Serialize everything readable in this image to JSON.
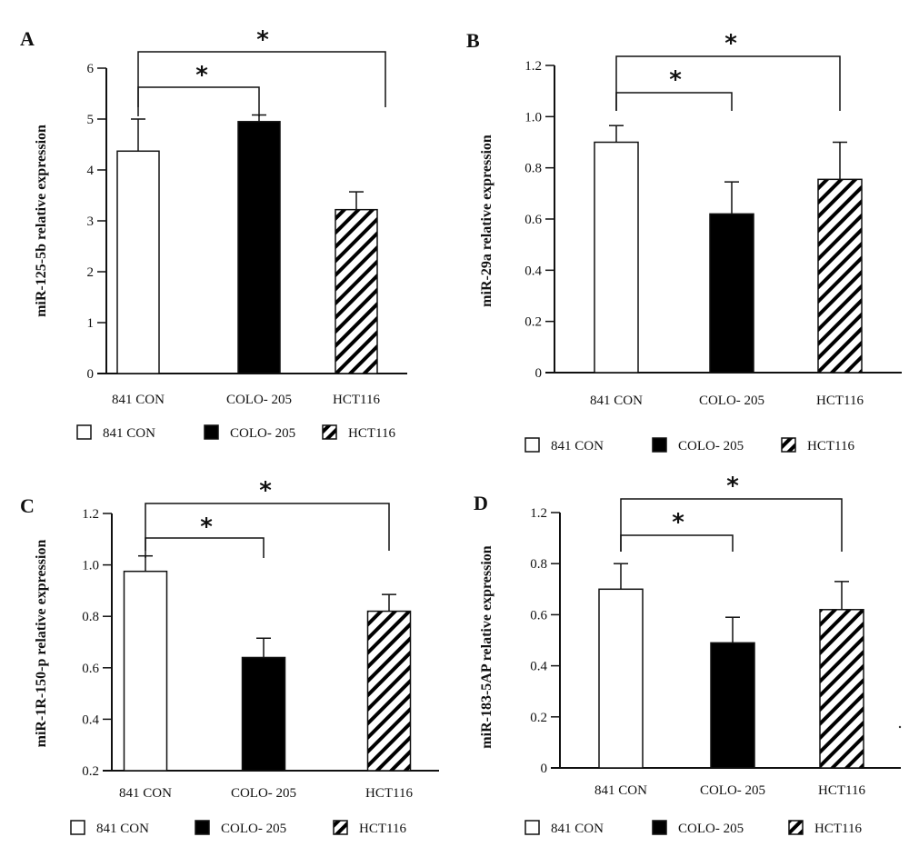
{
  "chart_data": [
    {
      "type": "bar",
      "panel": "A",
      "ylabel": "miR-125-5b relative expression",
      "categories": [
        "841 CON",
        "COLO- 205",
        "HCT116"
      ],
      "values": [
        4.37,
        4.95,
        3.22
      ],
      "error_upper": [
        5.0,
        5.08,
        3.57
      ],
      "yticks": [
        "0",
        "1",
        "2",
        "3",
        "4",
        "5",
        "6"
      ],
      "ylim": [
        0,
        6
      ],
      "significance": [
        {
          "from": "841 CON",
          "to": "COLO- 205",
          "mark": "*"
        },
        {
          "from": "841 CON",
          "to": "HCT116",
          "mark": "*"
        }
      ],
      "legend": [
        "841 CON",
        "COLO- 205",
        "HCT116"
      ]
    },
    {
      "type": "bar",
      "panel": "B",
      "ylabel": "miR-29a relative expression",
      "categories": [
        "841 CON",
        "COLO- 205",
        "HCT116"
      ],
      "values": [
        0.9,
        0.62,
        0.755
      ],
      "error_upper": [
        0.965,
        0.745,
        0.9
      ],
      "yticks": [
        "0",
        "0.2",
        "0.4",
        "0.6",
        "0.8",
        "1.0",
        "1.2"
      ],
      "ylim": [
        0,
        1.2
      ],
      "significance": [
        {
          "from": "841 CON",
          "to": "COLO- 205",
          "mark": "*"
        },
        {
          "from": "841 CON",
          "to": "HCT116",
          "mark": "*"
        }
      ],
      "legend": [
        "841 CON",
        "COLO- 205",
        "HCT116"
      ]
    },
    {
      "type": "bar",
      "panel": "C",
      "ylabel": "miR-1R-150-p relative expression",
      "categories": [
        "841 CON",
        "COLO- 205",
        "HCT116"
      ],
      "values": [
        0.975,
        0.64,
        0.82
      ],
      "error_upper": [
        1.035,
        0.715,
        0.885
      ],
      "yticks": [
        "0.2",
        "0.4",
        "0.6",
        "0.8",
        "1.0",
        "1.2"
      ],
      "ylim": [
        0.2,
        1.2
      ],
      "significance": [
        {
          "from": "841 CON",
          "to": "COLO- 205",
          "mark": "*"
        },
        {
          "from": "841 CON",
          "to": "HCT116",
          "mark": "*"
        }
      ],
      "legend": [
        "841 CON",
        "COLO- 205",
        "HCT116"
      ]
    },
    {
      "type": "bar",
      "panel": "D",
      "ylabel": "miR-183-5AP relative expression",
      "categories": [
        "841 CON",
        "COLO- 205",
        "HCT116"
      ],
      "values": [
        0.7,
        0.49,
        0.62
      ],
      "error_upper": [
        0.8,
        0.59,
        0.73
      ],
      "yticks": [
        "0",
        "0.2",
        "0.4",
        "0.6",
        "0.8",
        "1.2"
      ],
      "ylim": [
        0,
        1.0
      ],
      "significance": [
        {
          "from": "841 CON",
          "to": "COLO- 205",
          "mark": "*"
        },
        {
          "from": "841 CON",
          "to": "HCT116",
          "mark": "*"
        }
      ],
      "legend": [
        "841 CON",
        "COLO- 205",
        "HCT116"
      ]
    }
  ],
  "series_styles": {
    "841 CON": {
      "fill": "#ffffff",
      "pattern": "none"
    },
    "COLO- 205": {
      "fill": "#000000",
      "pattern": "none"
    },
    "HCT116": {
      "fill": "#ffffff",
      "pattern": "diagonal-hatch"
    }
  }
}
